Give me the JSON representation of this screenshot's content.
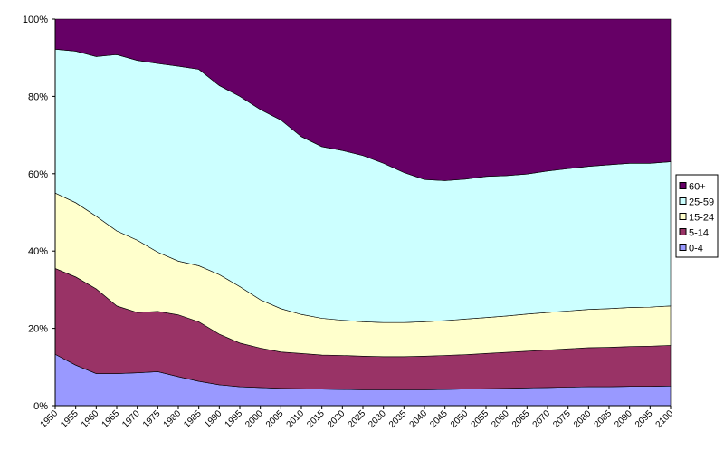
{
  "chart_data": {
    "type": "area",
    "stacked": "percent",
    "x": [
      1950,
      1955,
      1960,
      1965,
      1970,
      1975,
      1980,
      1985,
      1990,
      1995,
      2000,
      2005,
      2010,
      2015,
      2020,
      2025,
      2030,
      2035,
      2040,
      2045,
      2050,
      2055,
      2060,
      2065,
      2070,
      2075,
      2080,
      2085,
      2090,
      2095,
      2100
    ],
    "ylim": [
      0,
      100
    ],
    "yticks": [
      0,
      20,
      40,
      60,
      80,
      100
    ],
    "ytick_labels": [
      "0%",
      "20%",
      "40%",
      "60%",
      "80%",
      "100%"
    ],
    "grid": false,
    "legend": "right",
    "series": [
      {
        "name": "0-4",
        "color": "#9999ff",
        "values": [
          13.3,
          10.5,
          8.3,
          8.3,
          8.5,
          8.8,
          7.5,
          6.3,
          5.4,
          4.9,
          4.7,
          4.5,
          4.4,
          4.3,
          4.2,
          4.1,
          4.1,
          4.1,
          4.1,
          4.2,
          4.3,
          4.4,
          4.5,
          4.6,
          4.7,
          4.8,
          4.9,
          4.9,
          5.0,
          5.0,
          5.1
        ]
      },
      {
        "name": "5-14",
        "color": "#993366",
        "values": [
          22.2,
          22.8,
          21.9,
          17.5,
          15.6,
          15.6,
          16.0,
          15.4,
          13.1,
          11.3,
          10.2,
          9.4,
          9.1,
          8.8,
          8.8,
          8.7,
          8.6,
          8.6,
          8.7,
          8.8,
          8.9,
          9.1,
          9.3,
          9.5,
          9.7,
          9.9,
          10.1,
          10.2,
          10.3,
          10.4,
          10.5
        ]
      },
      {
        "name": "15-24",
        "color": "#ffffcc",
        "values": [
          19.5,
          19.2,
          18.8,
          19.4,
          18.7,
          15.3,
          13.9,
          14.5,
          15.4,
          14.6,
          12.5,
          11.2,
          10.1,
          9.5,
          9.1,
          8.9,
          8.8,
          8.8,
          8.9,
          9.0,
          9.2,
          9.3,
          9.4,
          9.6,
          9.7,
          9.8,
          9.9,
          10.0,
          10.1,
          10.1,
          10.2
        ]
      },
      {
        "name": "25-59",
        "color": "#ccffff",
        "values": [
          37.2,
          39.2,
          41.3,
          45.6,
          46.5,
          48.8,
          50.4,
          50.8,
          48.9,
          49.2,
          49.2,
          48.8,
          46.0,
          44.4,
          43.9,
          43.0,
          41.2,
          38.8,
          36.8,
          36.2,
          36.2,
          36.5,
          36.3,
          36.2,
          36.6,
          36.8,
          37.0,
          37.2,
          37.3,
          37.2,
          37.3
        ]
      },
      {
        "name": "60+",
        "color": "#660066",
        "values": [
          7.8,
          8.3,
          9.7,
          9.2,
          10.7,
          11.5,
          12.2,
          13.0,
          17.2,
          20.0,
          23.4,
          26.1,
          30.4,
          33.0,
          34.0,
          35.3,
          37.3,
          39.7,
          41.5,
          41.8,
          41.4,
          40.7,
          40.5,
          40.1,
          39.3,
          38.7,
          38.1,
          37.7,
          37.3,
          37.3,
          36.9
        ]
      }
    ]
  }
}
